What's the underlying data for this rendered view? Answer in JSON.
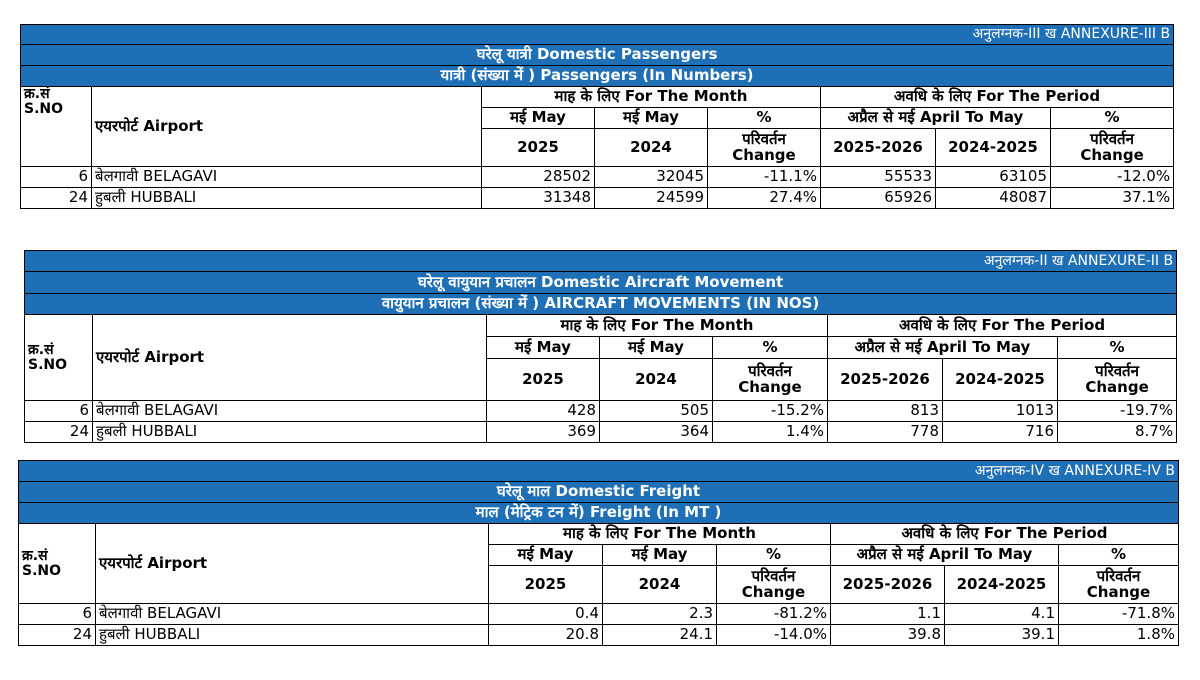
{
  "common": {
    "month_hdr": "माह के लिए For The Month",
    "period_hdr": "अवधि के लिए For The Period",
    "sno": "क्र.सं\nS.NO",
    "airport": "एयरपोर्ट Airport",
    "may": "मई May",
    "april_may": "अप्रैल से मई April To May",
    "pct": "%",
    "change": "परिवर्तन\nChange",
    "y2025": "2025",
    "y2024": "2024",
    "fy1": "2025-2026",
    "fy2": "2024-2025"
  },
  "passengers": {
    "annexure": "अनुलग्नक-III ख ANNEXURE-III B",
    "title": "घरेलू यात्री Domestic Passengers",
    "subtitle": "यात्री (संख्या में ) Passengers (In Numbers)",
    "rows": [
      {
        "sno": "6",
        "airport": "बेलगावी BELAGAVI",
        "m2025": "28502",
        "m2024": "32045",
        "mchg": "-11.1%",
        "p1": "55533",
        "p2": "63105",
        "pchg": "-12.0%"
      },
      {
        "sno": "24",
        "airport": "हुबली HUBBALI",
        "m2025": "31348",
        "m2024": "24599",
        "mchg": "27.4%",
        "p1": "65926",
        "p2": "48087",
        "pchg": "37.1%"
      }
    ]
  },
  "aircraft": {
    "annexure": "अनुलग्नक-II ख ANNEXURE-II B",
    "title": "घरेलू वायुयान प्रचालन Domestic Aircraft Movement",
    "subtitle": "वायुयान प्रचालन (संख्या में ) AIRCRAFT MOVEMENTS (IN NOS)",
    "rows": [
      {
        "sno": "6",
        "airport": "बेलगावी BELAGAVI",
        "m2025": "428",
        "m2024": "505",
        "mchg": "-15.2%",
        "p1": "813",
        "p2": "1013",
        "pchg": "-19.7%"
      },
      {
        "sno": "24",
        "airport": "हुबली HUBBALI",
        "m2025": "369",
        "m2024": "364",
        "mchg": "1.4%",
        "p1": "778",
        "p2": "716",
        "pchg": "8.7%"
      }
    ]
  },
  "freight": {
    "annexure": "अनुलग्नक-IV ख ANNEXURE-IV B",
    "title": "घरेलू माल Domestic Freight",
    "subtitle": "माल (मेट्रिक टन में) Freight (In MT )",
    "rows": [
      {
        "sno": "6",
        "airport": "बेलगावी BELAGAVI",
        "m2025": "0.4",
        "m2024": "2.3",
        "mchg": "-81.2%",
        "p1": "1.1",
        "p2": "4.1",
        "pchg": "-71.8%"
      },
      {
        "sno": "24",
        "airport": "हुबली HUBBALI",
        "m2025": "20.8",
        "m2024": "24.1",
        "mchg": "-14.0%",
        "p1": "39.8",
        "p2": "39.1",
        "pchg": "1.8%"
      }
    ]
  }
}
